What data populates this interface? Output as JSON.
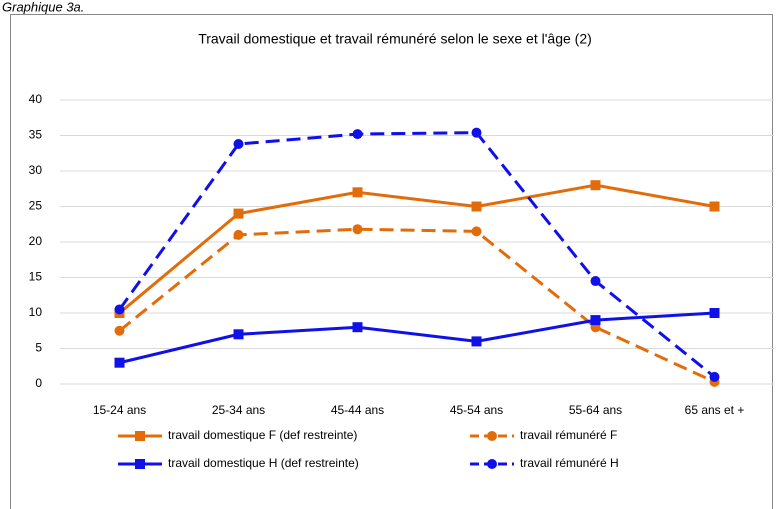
{
  "chart_data": {
    "type": "line",
    "label": "Graphique 3a.",
    "title": "Travail domestique et travail rémunéré selon le sexe et l'âge (2)",
    "categories": [
      "15-24 ans",
      "25-34 ans",
      "45-44 ans",
      "45-54 ans",
      "55-64 ans",
      "65 ans et +"
    ],
    "series": [
      {
        "name": "travail domestique F (def restreinte)",
        "color": "#e36c0a",
        "dashed": false,
        "marker": "square",
        "values": [
          10,
          24,
          27,
          25,
          28,
          25
        ]
      },
      {
        "name": "travail rémunéré F",
        "color": "#e36c0a",
        "dashed": true,
        "marker": "circle",
        "values": [
          7.5,
          21,
          21.8,
          21.5,
          8,
          0.3
        ]
      },
      {
        "name": "travail domestique H (def restreinte)",
        "color": "#1010e8",
        "dashed": false,
        "marker": "square",
        "values": [
          3,
          7,
          8,
          6,
          9,
          10
        ]
      },
      {
        "name": "travail rémunéré H",
        "color": "#1010e8",
        "dashed": true,
        "marker": "circle",
        "values": [
          10.5,
          33.8,
          35.2,
          35.4,
          14.5,
          1
        ]
      }
    ],
    "ylim": [
      0,
      40
    ],
    "yticks": [
      0,
      5,
      10,
      15,
      20,
      25,
      30,
      35,
      40
    ],
    "grid": true
  }
}
